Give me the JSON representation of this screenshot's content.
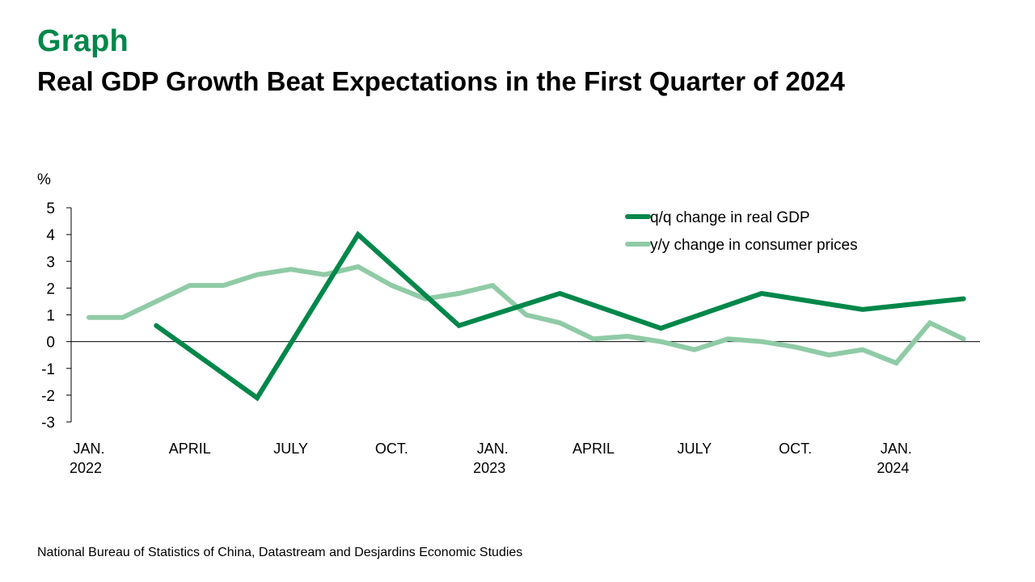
{
  "header": {
    "label": "Graph",
    "title": "Real GDP Growth Beat Expectations in the First Quarter of 2024"
  },
  "source": "National Bureau of Statistics of China, Datastream and Desjardins Economic Studies",
  "colors": {
    "accent": "#00874A",
    "gdp_line": "#00874A",
    "cpi_line": "#8FCBA6",
    "axis": "#000000"
  },
  "chart_data": {
    "type": "line",
    "title": "Real GDP Growth Beat Expectations in the First Quarter of 2024",
    "xlabel": "",
    "ylabel": "%",
    "ylim": [
      -3,
      5
    ],
    "yticks": [
      5,
      4,
      3,
      2,
      1,
      0,
      -1,
      -2,
      -3
    ],
    "grid": false,
    "legend_position": "top-right",
    "x_months": [
      "2022-01",
      "2022-02",
      "2022-03",
      "2022-04",
      "2022-05",
      "2022-06",
      "2022-07",
      "2022-08",
      "2022-09",
      "2022-10",
      "2022-11",
      "2022-12",
      "2023-01",
      "2023-02",
      "2023-03",
      "2023-04",
      "2023-05",
      "2023-06",
      "2023-07",
      "2023-08",
      "2023-09",
      "2023-10",
      "2023-11",
      "2023-12",
      "2024-01",
      "2024-02",
      "2024-03"
    ],
    "xtick_labels": [
      {
        "month_index": 0,
        "line1": "JAN.",
        "line2": "2022"
      },
      {
        "month_index": 3,
        "line1": "APRIL",
        "line2": ""
      },
      {
        "month_index": 6,
        "line1": "JULY",
        "line2": ""
      },
      {
        "month_index": 9,
        "line1": "OCT.",
        "line2": ""
      },
      {
        "month_index": 12,
        "line1": "JAN.",
        "line2": "2023"
      },
      {
        "month_index": 15,
        "line1": "APRIL",
        "line2": ""
      },
      {
        "month_index": 18,
        "line1": "JULY",
        "line2": ""
      },
      {
        "month_index": 21,
        "line1": "OCT.",
        "line2": ""
      },
      {
        "month_index": 24,
        "line1": "JAN.",
        "line2": "2024"
      }
    ],
    "series": [
      {
        "name": "q/q change in real GDP",
        "frequency": "quarterly",
        "month_index": [
          2,
          5,
          8,
          11,
          14,
          17,
          20,
          23,
          26
        ],
        "values": [
          0.6,
          -2.1,
          4.0,
          0.6,
          1.8,
          0.5,
          1.8,
          1.2,
          1.6
        ]
      },
      {
        "name": "y/y change in consumer prices",
        "frequency": "monthly",
        "month_index": [
          0,
          1,
          2,
          3,
          4,
          5,
          6,
          7,
          8,
          9,
          10,
          11,
          12,
          13,
          14,
          15,
          16,
          17,
          18,
          19,
          20,
          21,
          22,
          23,
          24,
          25,
          26
        ],
        "values": [
          0.9,
          0.9,
          1.5,
          2.1,
          2.1,
          2.5,
          2.7,
          2.5,
          2.8,
          2.1,
          1.6,
          1.8,
          2.1,
          1.0,
          0.7,
          0.1,
          0.2,
          0.0,
          -0.3,
          0.1,
          0.0,
          -0.2,
          -0.5,
          -0.3,
          -0.8,
          0.7,
          0.1
        ]
      }
    ]
  }
}
